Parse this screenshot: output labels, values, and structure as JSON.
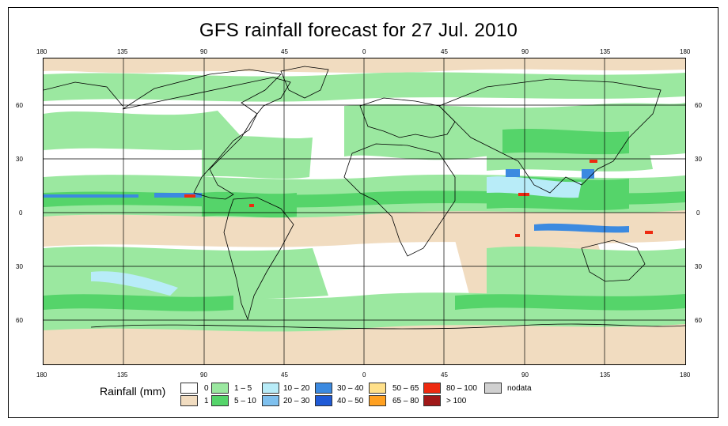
{
  "title": "GFS rainfall forecast for 27 Jul. 2010",
  "lon_ticks": [
    "180",
    "135",
    "90",
    "45",
    "0",
    "45",
    "90",
    "135",
    "180"
  ],
  "lat_ticks": [
    "60",
    "30",
    "0",
    "30",
    "60"
  ],
  "legend": {
    "title": "Rainfall (mm)",
    "items": [
      {
        "label": "0",
        "color": "#ffffff"
      },
      {
        "label": "1",
        "color": "#f1dcc0"
      },
      {
        "label": "1 – 5",
        "color": "#9be8a0"
      },
      {
        "label": "5 – 10",
        "color": "#55d46a"
      },
      {
        "label": "10 – 20",
        "color": "#b8ecf8"
      },
      {
        "label": "20 – 30",
        "color": "#7ec0ee"
      },
      {
        "label": "30 – 40",
        "color": "#3c8ae0"
      },
      {
        "label": "40 – 50",
        "color": "#1f5ad6"
      },
      {
        "label": "50 – 65",
        "color": "#ffe08a"
      },
      {
        "label": "65 – 80",
        "color": "#ffa020"
      },
      {
        "label": "80 – 100",
        "color": "#ee2a10"
      },
      {
        "label": "> 100",
        "color": "#a01818"
      },
      {
        "label": "nodata",
        "color": "#d0d0d0"
      }
    ]
  }
}
